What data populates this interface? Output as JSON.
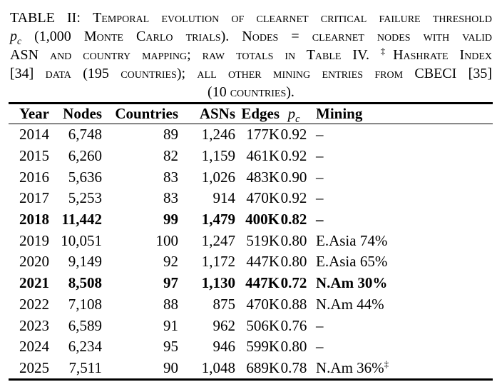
{
  "colors": {
    "background": "#ffffff",
    "text": "#000000",
    "rule": "#000000"
  },
  "caption": {
    "label": "TABLE II:",
    "line1": "Temporal evolution of clearnet critical failure threshold",
    "pc_math": {
      "base": "p",
      "sub": "c"
    },
    "line2": "(1,000 Monte Carlo trials). Nodes = clearnet nodes with valid",
    "line3a": "ASN and country mapping; raw totals in Table IV.",
    "dagger": "‡",
    "line3b": "Hashrate Index",
    "line4": "[34] data (195 countries); all other mining entries from CBECI [35]",
    "line5": "(10 countries)."
  },
  "table": {
    "pc_header": {
      "base": "p",
      "sub": "c"
    },
    "columns": [
      {
        "key": "year",
        "label": "Year",
        "align": "left"
      },
      {
        "key": "nodes",
        "label": "Nodes",
        "align": "right"
      },
      {
        "key": "countries",
        "label": "Countries",
        "align": "right"
      },
      {
        "key": "asns",
        "label": "ASNs",
        "align": "right"
      },
      {
        "key": "edges",
        "label": "Edges",
        "align": "right"
      },
      {
        "key": "pc",
        "label": "pc",
        "align": "center"
      },
      {
        "key": "mining",
        "label": "Mining",
        "align": "left"
      }
    ],
    "rows": [
      {
        "year": "2014",
        "nodes": "6,748",
        "countries": "89",
        "asns": "1,246",
        "edges": "177K",
        "pc": "0.92",
        "mining": "–",
        "mining_sup": "",
        "bold": false
      },
      {
        "year": "2015",
        "nodes": "6,260",
        "countries": "82",
        "asns": "1,159",
        "edges": "461K",
        "pc": "0.92",
        "mining": "–",
        "mining_sup": "",
        "bold": false
      },
      {
        "year": "2016",
        "nodes": "5,636",
        "countries": "83",
        "asns": "1,026",
        "edges": "483K",
        "pc": "0.90",
        "mining": "–",
        "mining_sup": "",
        "bold": false
      },
      {
        "year": "2017",
        "nodes": "5,253",
        "countries": "83",
        "asns": "914",
        "edges": "470K",
        "pc": "0.92",
        "mining": "–",
        "mining_sup": "",
        "bold": false
      },
      {
        "year": "2018",
        "nodes": "11,442",
        "countries": "99",
        "asns": "1,479",
        "edges": "400K",
        "pc": "0.82",
        "mining": "–",
        "mining_sup": "",
        "bold": true
      },
      {
        "year": "2019",
        "nodes": "10,051",
        "countries": "100",
        "asns": "1,247",
        "edges": "519K",
        "pc": "0.80",
        "mining": "E.Asia 74%",
        "mining_sup": "",
        "bold": false
      },
      {
        "year": "2020",
        "nodes": "9,149",
        "countries": "92",
        "asns": "1,172",
        "edges": "447K",
        "pc": "0.80",
        "mining": "E.Asia 65%",
        "mining_sup": "",
        "bold": false
      },
      {
        "year": "2021",
        "nodes": "8,508",
        "countries": "97",
        "asns": "1,130",
        "edges": "447K",
        "pc": "0.72",
        "mining": "N.Am 30%",
        "mining_sup": "",
        "bold": true
      },
      {
        "year": "2022",
        "nodes": "7,108",
        "countries": "88",
        "asns": "875",
        "edges": "470K",
        "pc": "0.88",
        "mining": "N.Am 44%",
        "mining_sup": "",
        "bold": false
      },
      {
        "year": "2023",
        "nodes": "6,589",
        "countries": "91",
        "asns": "962",
        "edges": "506K",
        "pc": "0.76",
        "mining": "–",
        "mining_sup": "",
        "bold": false
      },
      {
        "year": "2024",
        "nodes": "6,234",
        "countries": "95",
        "asns": "946",
        "edges": "599K",
        "pc": "0.80",
        "mining": "–",
        "mining_sup": "",
        "bold": false
      },
      {
        "year": "2025",
        "nodes": "7,511",
        "countries": "90",
        "asns": "1,048",
        "edges": "689K",
        "pc": "0.78",
        "mining": "N.Am 36%",
        "mining_sup": "‡",
        "bold": false
      }
    ]
  }
}
